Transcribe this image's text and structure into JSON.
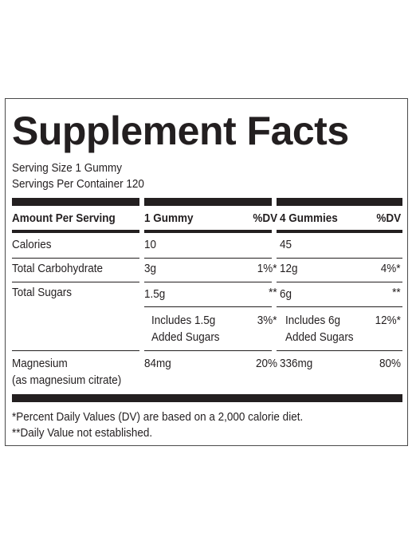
{
  "title": "Supplement Facts",
  "serving_size": "Serving Size 1 Gummy",
  "servings_per_container": "Servings Per Container 120",
  "header": {
    "amount_per_serving": "Amount Per Serving",
    "col1": "1 Gummy",
    "col1_dv": "%DV",
    "col2": "4 Gummies",
    "col2_dv": "%DV"
  },
  "rows": [
    {
      "name": "Calories",
      "v1": "10",
      "dv1": "",
      "v2": "45",
      "dv2": ""
    },
    {
      "name": "Total Carbohydrate",
      "v1": "3g",
      "dv1": "1%*",
      "v2": "12g",
      "dv2": "4%*"
    },
    {
      "name": "Total Sugars",
      "v1": "1.5g",
      "dv1": "**",
      "v2": "6g",
      "dv2": "**"
    },
    {
      "name": "",
      "v1_line1": "Includes 1.5g",
      "v1_line2": "Added Sugars",
      "dv1": "3%*",
      "v2_line1": "Includes 6g",
      "v2_line2": "Added Sugars",
      "dv2": "12%*"
    },
    {
      "name_line1": "Magnesium",
      "name_line2": "(as magnesium citrate)",
      "v1": "84mg",
      "dv1": "20%",
      "v2": "336mg",
      "dv2": "80%"
    }
  ],
  "footnotes": [
    "*Percent Daily Values (DV) are based on a 2,000 calorie diet.",
    "**Daily Value not established."
  ]
}
